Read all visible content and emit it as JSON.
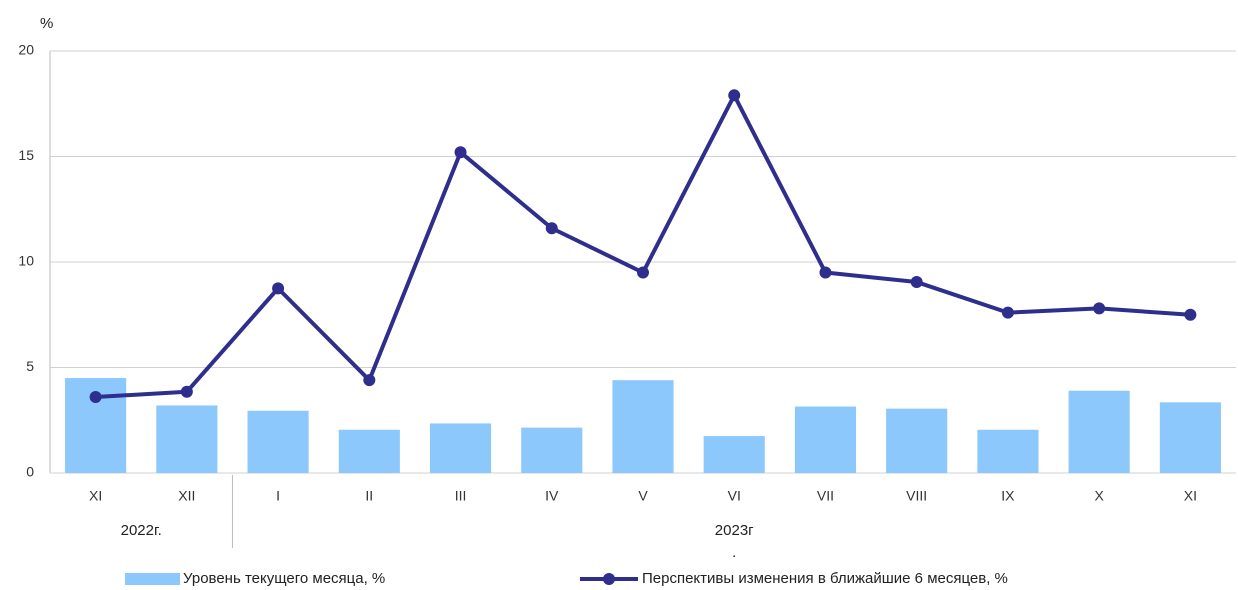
{
  "chart_data": {
    "type": "bar_line",
    "y_unit": "%",
    "categories": [
      "XI",
      "XII",
      "I",
      "II",
      "III",
      "IV",
      "V",
      "VI",
      "VII",
      "VIII",
      "IX",
      "X",
      "XI"
    ],
    "year_labels": [
      "2022г.",
      "2023г"
    ],
    "year_note": ".",
    "series": [
      {
        "name": "Уровень текущего месяца, %",
        "type": "bar",
        "color": "#8cc8fb",
        "values": [
          4.5,
          3.2,
          2.95,
          2.05,
          2.35,
          2.15,
          4.4,
          1.75,
          3.15,
          3.05,
          2.05,
          3.9,
          3.35
        ]
      },
      {
        "name": "Перспективы изменения в ближайшие 6 месяцев, %",
        "type": "line",
        "color": "#2e2e8c",
        "values": [
          3.6,
          3.85,
          8.75,
          4.4,
          15.2,
          11.6,
          9.5,
          17.9,
          9.5,
          9.05,
          7.6,
          7.8,
          7.5
        ]
      }
    ],
    "ylim": [
      0,
      20
    ],
    "yticks": [
      0,
      5,
      10,
      15,
      20
    ],
    "grid": true
  }
}
